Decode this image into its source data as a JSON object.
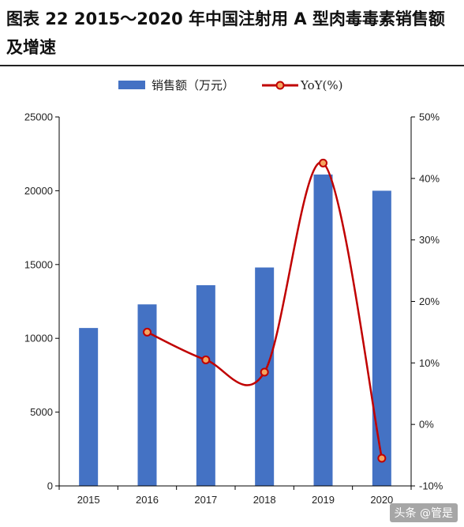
{
  "title": "图表 22 2015～2020 年中国注射用 A 型肉毒毒素销售额及增速",
  "watermark": "头条 @管是",
  "colors": {
    "bar": "#4472C4",
    "line": "#C00000",
    "marker_fill": "#F4A460",
    "axis": "#000000"
  },
  "chart_data": {
    "type": "bar",
    "categories": [
      "2015",
      "2016",
      "2017",
      "2018",
      "2019",
      "2020"
    ],
    "series": [
      {
        "name": "销售额（万元）",
        "type": "bar",
        "axis": "left",
        "values": [
          10700,
          12300,
          13600,
          14800,
          21100,
          20000
        ]
      },
      {
        "name": "YoY(%)",
        "type": "line",
        "axis": "right",
        "values": [
          null,
          15.0,
          10.5,
          8.5,
          42.5,
          -5.5
        ]
      }
    ],
    "y_left": {
      "min": 0,
      "max": 25000,
      "ticks": [
        "0",
        "5000",
        "10000",
        "15000",
        "20000",
        "25000"
      ]
    },
    "y_right": {
      "min": -10,
      "max": 50,
      "ticks": [
        "-10%",
        "0%",
        "10%",
        "20%",
        "30%",
        "40%",
        "50%"
      ]
    },
    "legend": "top",
    "grid": false
  }
}
